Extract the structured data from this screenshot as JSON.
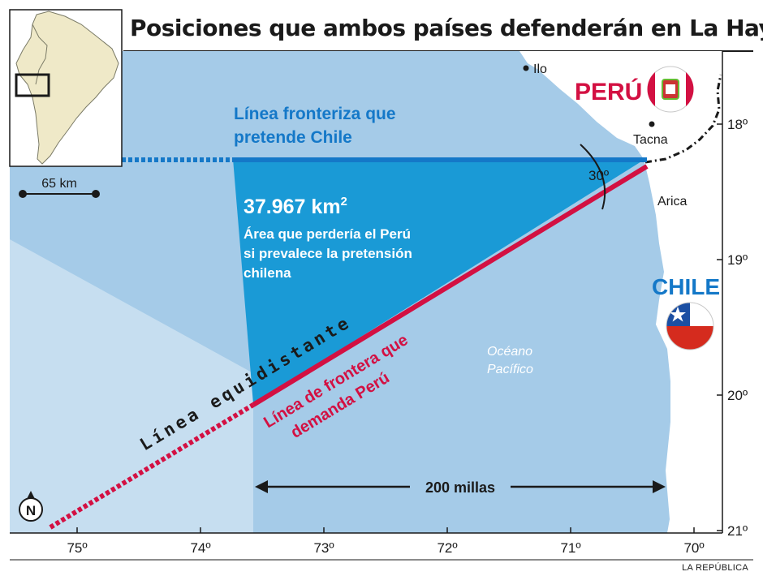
{
  "title": "Posiciones que ambos países defenderán en La Haya",
  "credit": "LA REPÚBLICA",
  "colors": {
    "sea": "#a5cbe8",
    "sea_light": "#c6def0",
    "disputed_area": "#1a9ad6",
    "chile_line": "#1478c8",
    "peru_line": "#d31042",
    "land": "#ffffff",
    "axis": "#1a1a1a"
  },
  "inset": {
    "scale_label": "65 km"
  },
  "places": {
    "ilo": "Ilo",
    "tacna": "Tacna",
    "arica": "Arica"
  },
  "countries": {
    "peru": "PERÚ",
    "chile": "CHILE"
  },
  "labels": {
    "chile_line": [
      "Línea fronteriza que",
      "pretende Chile"
    ],
    "area_value": "37.967 km",
    "area_superscript": "2",
    "area_desc": [
      "Área que perdería el Perú",
      "si prevalece la pretensión",
      "chilena"
    ],
    "equidistant": "Línea equidistante",
    "peru_line": [
      "Línea de frontera que",
      "demanda Perú"
    ],
    "ocean": [
      "Océano",
      "Pacífico"
    ],
    "angle": "30º",
    "distance": "200 millas",
    "north": "N"
  },
  "lon_ticks": [
    "75º",
    "74º",
    "73º",
    "72º",
    "71º",
    "70º"
  ],
  "lat_ticks": [
    "18º",
    "19º",
    "20º",
    "21º"
  ]
}
